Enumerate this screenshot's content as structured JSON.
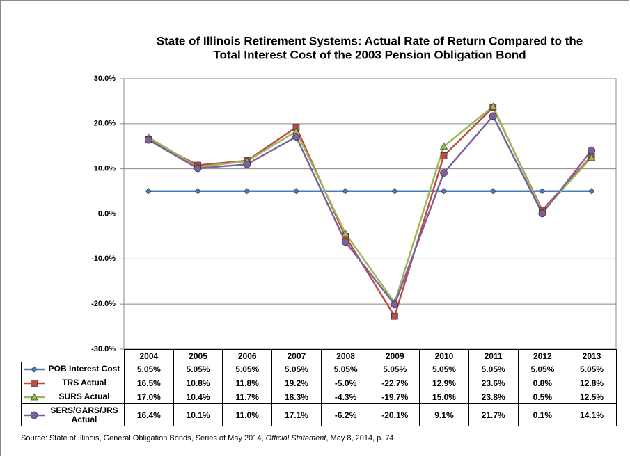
{
  "chart_data": {
    "type": "line",
    "title": [
      "State of Illinois Retirement Systems: Actual Rate of Return Compared to the",
      "Total Interest Cost of the 2003 Pension Obligation Bond"
    ],
    "categories": [
      "2004",
      "2005",
      "2006",
      "2007",
      "2008",
      "2009",
      "2010",
      "2011",
      "2012",
      "2013"
    ],
    "series": [
      {
        "name": "POB Interest Cost",
        "color": "#4a7ebb",
        "marker": "diamond",
        "values": [
          5.05,
          5.05,
          5.05,
          5.05,
          5.05,
          5.05,
          5.05,
          5.05,
          5.05,
          5.05
        ],
        "value_labels": [
          "5.05%",
          "5.05%",
          "5.05%",
          "5.05%",
          "5.05%",
          "5.05%",
          "5.05%",
          "5.05%",
          "5.05%",
          "5.05%"
        ]
      },
      {
        "name": "TRS Actual",
        "color": "#be4b48",
        "marker": "square",
        "values": [
          16.5,
          10.8,
          11.8,
          19.2,
          -5.0,
          -22.7,
          12.9,
          23.6,
          0.8,
          12.8
        ],
        "value_labels": [
          "16.5%",
          "10.8%",
          "11.8%",
          "19.2%",
          "-5.0%",
          "-22.7%",
          "12.9%",
          "23.6%",
          "0.8%",
          "12.8%"
        ]
      },
      {
        "name": "SURS Actual",
        "color": "#98b954",
        "marker": "triangle",
        "values": [
          17.0,
          10.4,
          11.7,
          18.3,
          -4.3,
          -19.7,
          15.0,
          23.8,
          0.5,
          12.5
        ],
        "value_labels": [
          "17.0%",
          "10.4%",
          "11.7%",
          "18.3%",
          "-4.3%",
          "-19.7%",
          "15.0%",
          "23.8%",
          "0.5%",
          "12.5%"
        ]
      },
      {
        "name": "SERS/GARS/JRS Actual",
        "color": "#7d60a0",
        "marker": "circle",
        "values": [
          16.4,
          10.1,
          11.0,
          17.1,
          -6.2,
          -20.1,
          9.1,
          21.7,
          0.1,
          14.1
        ],
        "value_labels": [
          "16.4%",
          "10.1%",
          "11.0%",
          "17.1%",
          "-6.2%",
          "-20.1%",
          "9.1%",
          "21.7%",
          "0.1%",
          "14.1%"
        ]
      }
    ],
    "ylim": [
      -30,
      30
    ],
    "yticks": [
      {
        "value": -30,
        "label": "-30.0%"
      },
      {
        "value": -20,
        "label": "-20.0%"
      },
      {
        "value": -10,
        "label": "-10.0%"
      },
      {
        "value": 0,
        "label": "0.0%"
      },
      {
        "value": 10,
        "label": "10.0%"
      },
      {
        "value": 20,
        "label": "20.0%"
      },
      {
        "value": 30,
        "label": "30.0%"
      }
    ],
    "grid": true,
    "source": [
      "Source: State of Illinois, General Obligation Bonds, Series of May 2014, ",
      "Official Statement",
      ", May 8, 2014, p. 74."
    ]
  }
}
